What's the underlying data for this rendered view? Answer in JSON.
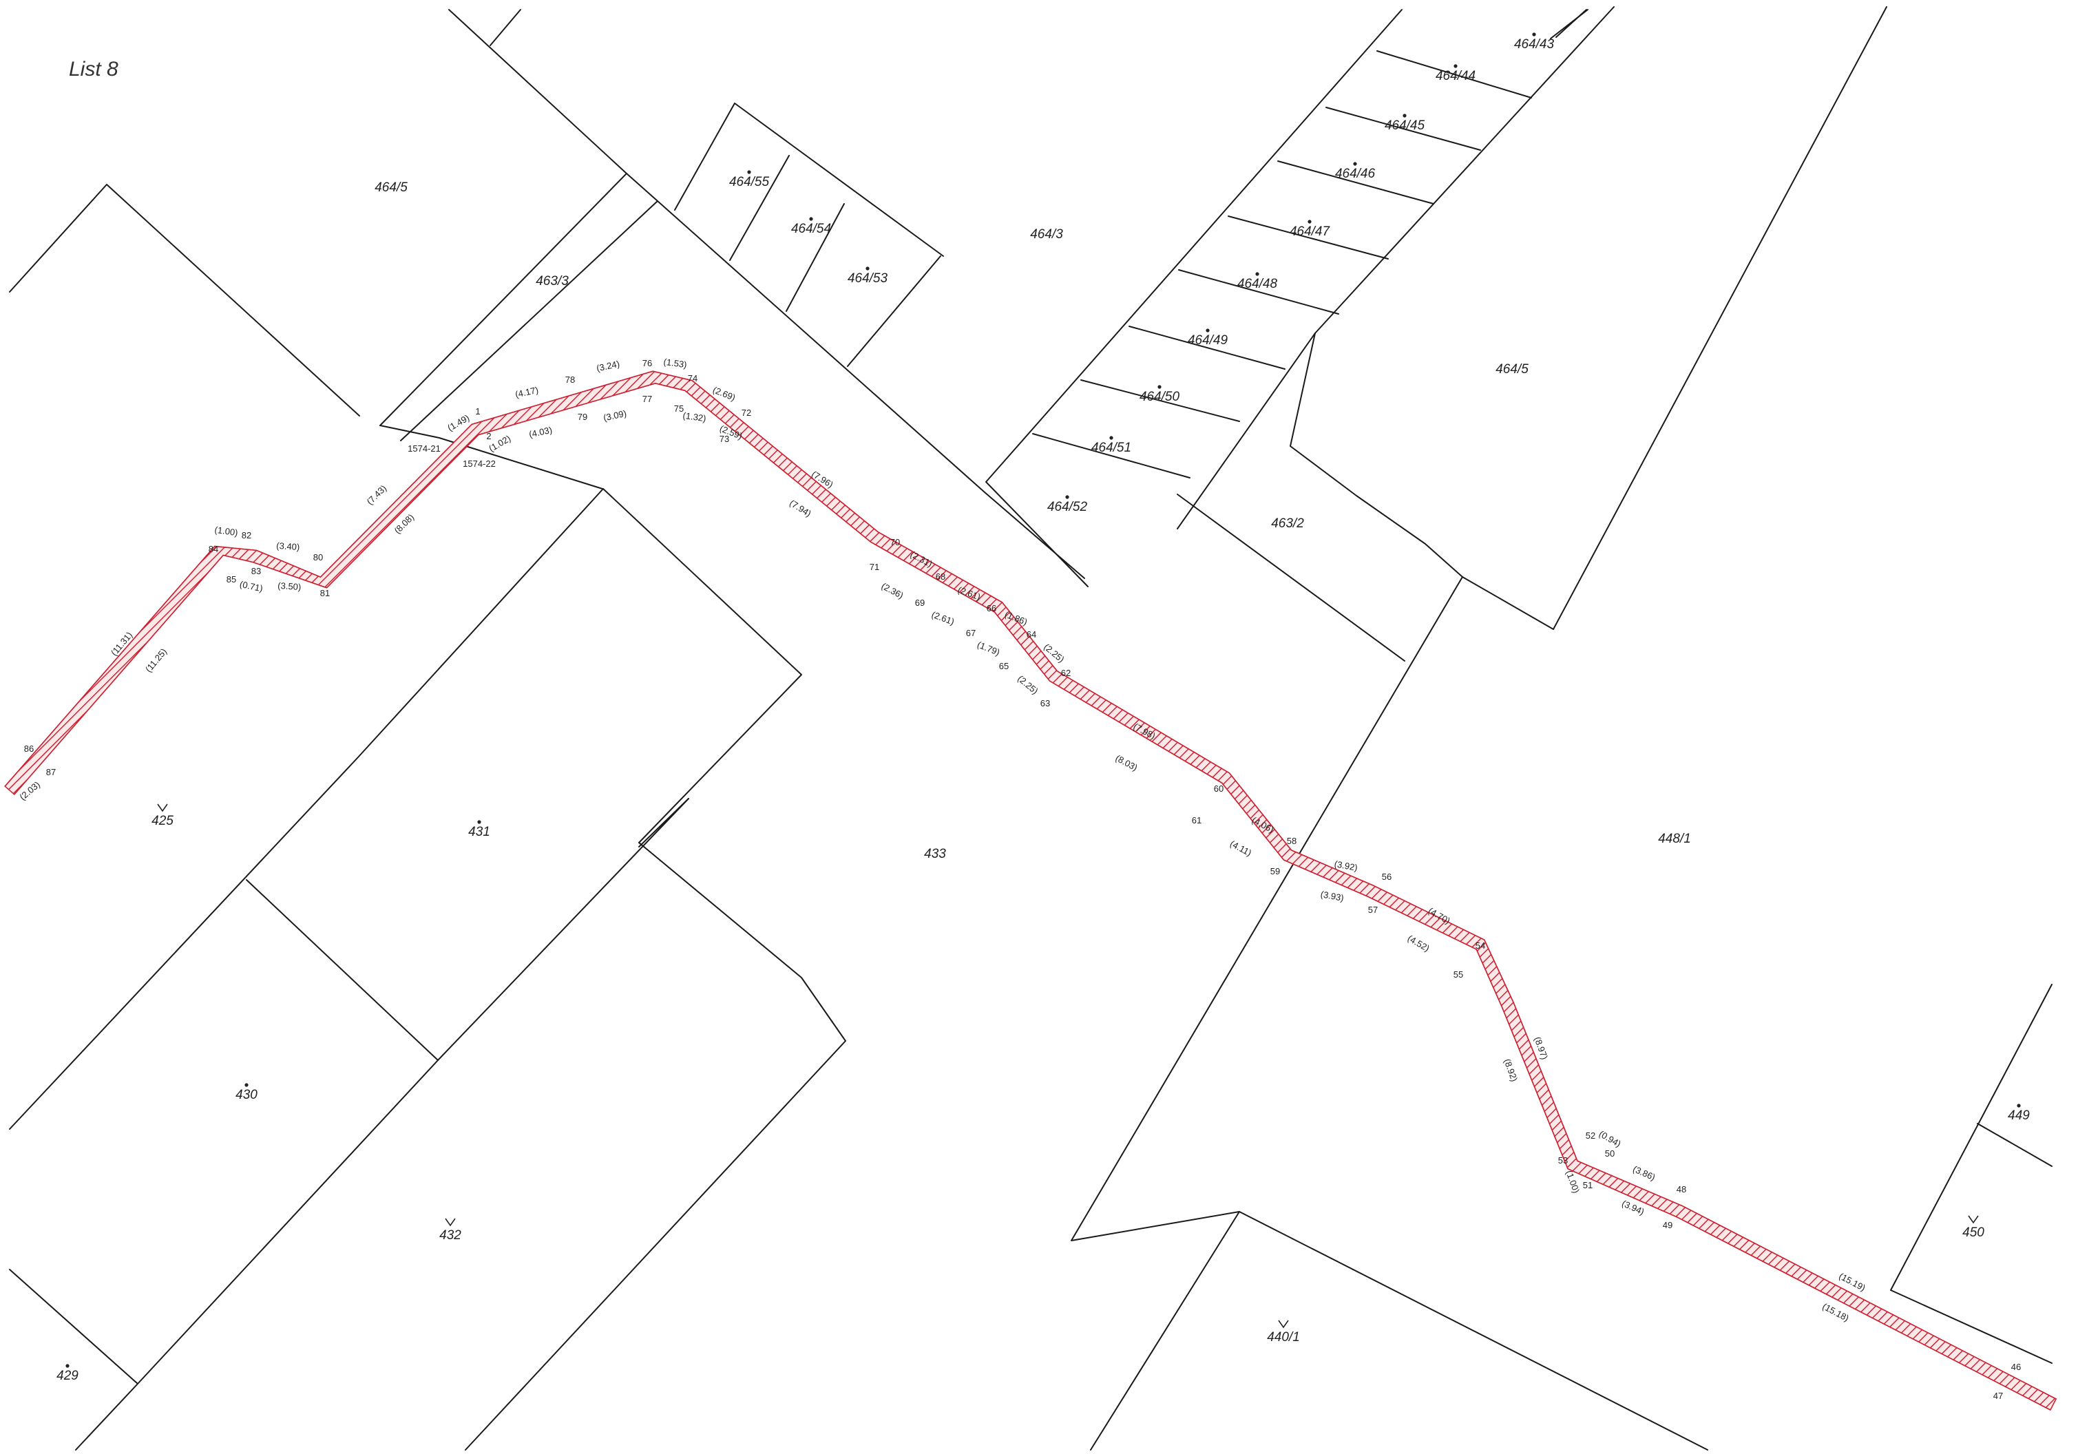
{
  "sheet": {
    "label": "List 8"
  },
  "colors": {
    "route": "#d02535",
    "lines": "#1a1a1a",
    "background": "#ffffff"
  },
  "parcels": [
    {
      "id": "p_464_5_a",
      "label": "464/5",
      "marker": "none"
    },
    {
      "id": "p_463_3",
      "label": "463/3",
      "marker": "none"
    },
    {
      "id": "p_464_55",
      "label": "464/55",
      "marker": "dot"
    },
    {
      "id": "p_464_54",
      "label": "464/54",
      "marker": "dot"
    },
    {
      "id": "p_464_53",
      "label": "464/53",
      "marker": "dot"
    },
    {
      "id": "p_464_3",
      "label": "464/3",
      "marker": "none"
    },
    {
      "id": "p_464_43",
      "label": "464/43",
      "marker": "dot"
    },
    {
      "id": "p_464_44",
      "label": "464/44",
      "marker": "dot"
    },
    {
      "id": "p_464_45",
      "label": "464/45",
      "marker": "dot"
    },
    {
      "id": "p_464_46",
      "label": "464/46",
      "marker": "dot"
    },
    {
      "id": "p_464_47",
      "label": "464/47",
      "marker": "dot"
    },
    {
      "id": "p_464_48",
      "label": "464/48",
      "marker": "dot"
    },
    {
      "id": "p_464_49",
      "label": "464/49",
      "marker": "dot"
    },
    {
      "id": "p_464_50",
      "label": "464/50",
      "marker": "dot"
    },
    {
      "id": "p_464_51",
      "label": "464/51",
      "marker": "dot"
    },
    {
      "id": "p_464_52",
      "label": "464/52",
      "marker": "dot"
    },
    {
      "id": "p_464_5_b",
      "label": "464/5",
      "marker": "none"
    },
    {
      "id": "p_463_2",
      "label": "463/2",
      "marker": "none"
    },
    {
      "id": "p_425",
      "label": "425",
      "marker": "v"
    },
    {
      "id": "p_431",
      "label": "431",
      "marker": "dot"
    },
    {
      "id": "p_433",
      "label": "433",
      "marker": "none"
    },
    {
      "id": "p_448_1",
      "label": "448/1",
      "marker": "none"
    },
    {
      "id": "p_430",
      "label": "430",
      "marker": "dot"
    },
    {
      "id": "p_432",
      "label": "432",
      "marker": "v"
    },
    {
      "id": "p_429",
      "label": "429",
      "marker": "dot"
    },
    {
      "id": "p_440_1",
      "label": "440/1",
      "marker": "v"
    },
    {
      "id": "p_449",
      "label": "449",
      "marker": "dot"
    },
    {
      "id": "p_450",
      "label": "450",
      "marker": "v"
    }
  ],
  "points": [
    "86",
    "87",
    "84",
    "82",
    "85",
    "83",
    "80",
    "81",
    "1574-21",
    "1574-22",
    "1",
    "2",
    "78",
    "79",
    "76",
    "77",
    "74",
    "75",
    "72",
    "73",
    "70",
    "71",
    "68",
    "69",
    "66",
    "67",
    "64",
    "65",
    "62",
    "63",
    "60",
    "61",
    "58",
    "59",
    "56",
    "57",
    "54",
    "55",
    "52",
    "53",
    "50",
    "51",
    "48",
    "49",
    "46",
    "47"
  ],
  "distances": [
    "(11.31)",
    "(11.25)",
    "(2.03)",
    "(1.00)",
    "(0.71)",
    "(3.40)",
    "(3.50)",
    "(7.43)",
    "(8.08)",
    "(1.49)",
    "(1.02)",
    "(4.17)",
    "(4.03)",
    "(3.24)",
    "(3.09)",
    "(1.53)",
    "(1.32)",
    "(2.69)",
    "(2.59)",
    "(7.96)",
    "(7.94)",
    "(2.31)",
    "(2.36)",
    "(2.61)",
    "(2.61)",
    "(1.86)",
    "(1.79)",
    "(2.25)",
    "(2.25)",
    "(7.98)",
    "(8.03)",
    "(4.06)",
    "(4.11)",
    "(3.92)",
    "(3.93)",
    "(4.70)",
    "(4.52)",
    "(8.97)",
    "(8.92)",
    "(0.94)",
    "(1.00)",
    "(3.86)",
    "(3.94)",
    "(15.19)",
    "(15.18)"
  ]
}
